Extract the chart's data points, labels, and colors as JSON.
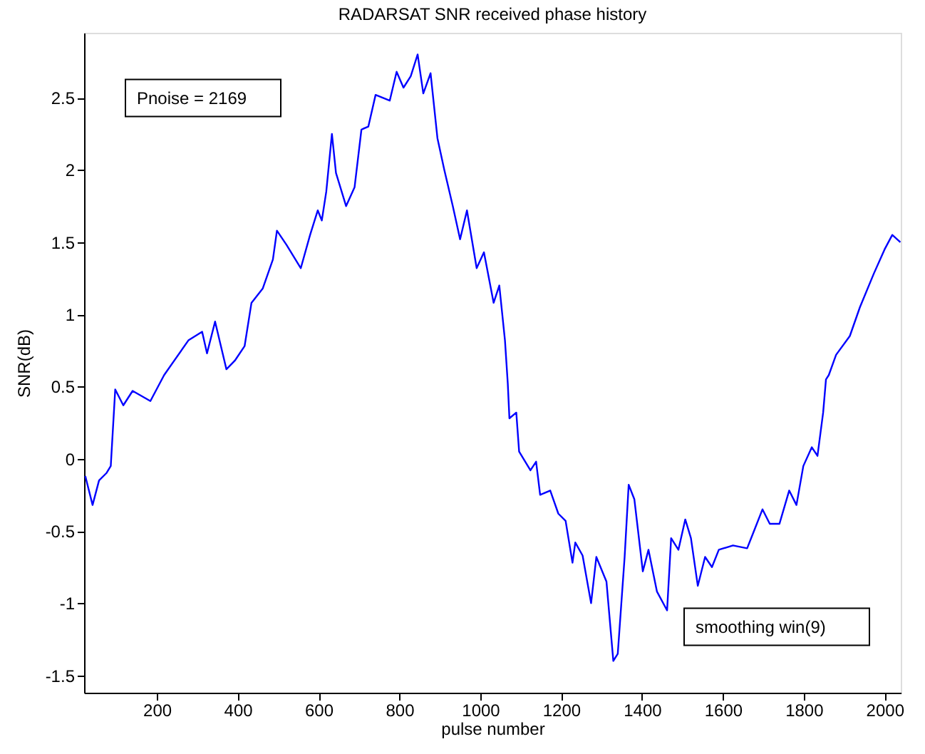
{
  "chart_data": {
    "type": "line",
    "title": "RADARSAT SNR received phase history",
    "xlabel": "pulse number",
    "ylabel": "SNR(dB)",
    "xlim": [
      20,
      2040
    ],
    "xticks": [
      200,
      400,
      600,
      800,
      1000,
      1200,
      1400,
      1600,
      1800,
      2000
    ],
    "ylim": [
      -1.62,
      2.95
    ],
    "yticks": [
      -1.5,
      -1,
      -0.5,
      0,
      0.5,
      1,
      1.5,
      2,
      2.5
    ],
    "grid": false,
    "marker": "none",
    "line_style": "solid",
    "annotations": [
      "Pnoise = 2169",
      "smoothing win(9)"
    ],
    "series": [
      {
        "color": "#0000ff",
        "x": [
          23,
          41,
          57,
          75,
          86,
          97,
          117,
          140,
          184,
          218,
          278,
          312,
          324,
          344,
          372,
          393,
          417,
          434,
          462,
          487,
          497,
          521,
          556,
          579,
          598,
          608,
          619,
          633,
          643,
          668,
          689,
          706,
          723,
          741,
          776,
          793,
          810,
          828,
          845,
          859,
          877,
          894,
          911,
          932,
          950,
          967,
          991,
          1009,
          1033,
          1047,
          1061,
          1068,
          1072,
          1089,
          1096,
          1124,
          1138,
          1148,
          1173,
          1193,
          1211,
          1228,
          1235,
          1253,
          1274,
          1287,
          1312,
          1329,
          1340,
          1357,
          1367,
          1381,
          1402,
          1416,
          1437,
          1462,
          1472,
          1490,
          1507,
          1521,
          1538,
          1556,
          1573,
          1590,
          1625,
          1660,
          1677,
          1698,
          1716,
          1740,
          1764,
          1782,
          1799,
          1820,
          1834,
          1848,
          1855,
          1862,
          1880,
          1914,
          1939,
          1973,
          2000,
          2019,
          2039
        ],
        "values": [
          -0.12,
          -0.32,
          -0.15,
          -0.1,
          -0.05,
          0.48,
          0.37,
          0.47,
          0.4,
          0.58,
          0.82,
          0.88,
          0.73,
          0.95,
          0.62,
          0.68,
          0.78,
          1.08,
          1.18,
          1.38,
          1.58,
          1.48,
          1.32,
          1.55,
          1.72,
          1.65,
          1.85,
          2.25,
          1.98,
          1.75,
          1.88,
          2.28,
          2.3,
          2.52,
          2.48,
          2.68,
          2.57,
          2.65,
          2.8,
          2.53,
          2.67,
          2.22,
          2.0,
          1.75,
          1.52,
          1.72,
          1.32,
          1.43,
          1.08,
          1.2,
          0.82,
          0.52,
          0.28,
          0.32,
          0.05,
          -0.08,
          -0.02,
          -0.25,
          -0.22,
          -0.38,
          -0.43,
          -0.72,
          -0.58,
          -0.67,
          -1.0,
          -0.68,
          -0.85,
          -1.4,
          -1.35,
          -0.68,
          -0.18,
          -0.28,
          -0.78,
          -0.63,
          -0.92,
          -1.05,
          -0.55,
          -0.63,
          -0.42,
          -0.55,
          -0.88,
          -0.68,
          -0.75,
          -0.63,
          -0.6,
          -0.62,
          -0.5,
          -0.35,
          -0.45,
          -0.45,
          -0.22,
          -0.32,
          -0.05,
          0.08,
          0.02,
          0.32,
          0.55,
          0.58,
          0.72,
          0.85,
          1.05,
          1.28,
          1.45,
          1.55,
          1.5
        ]
      }
    ]
  }
}
